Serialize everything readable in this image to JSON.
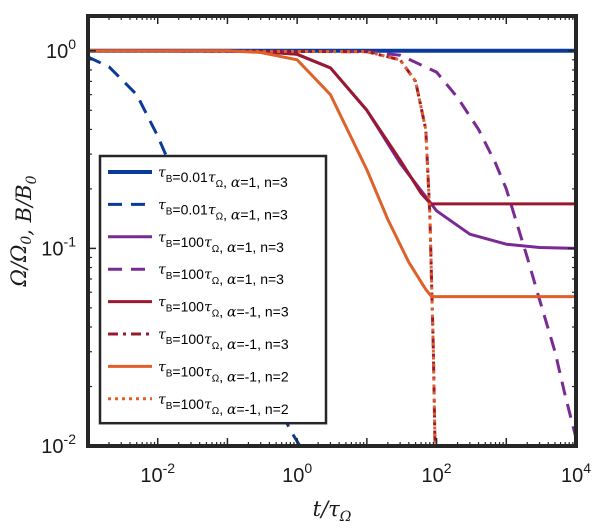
{
  "chart_data": {
    "type": "line",
    "title": "",
    "xlabel": "t/τ_Ω",
    "ylabel": "Ω/Ω_0, B/B_0",
    "x_scale": "log",
    "y_scale": "log",
    "xlim": [
      0.001,
      10000
    ],
    "ylim": [
      0.01,
      1.5
    ],
    "x_ticks": [
      {
        "value": 0.01,
        "base": "10",
        "exp": "-2"
      },
      {
        "value": 1,
        "base": "10",
        "exp": "0"
      },
      {
        "value": 100,
        "base": "10",
        "exp": "2"
      },
      {
        "value": 10000,
        "base": "10",
        "exp": "4"
      }
    ],
    "y_ticks": [
      {
        "value": 0.01,
        "base": "10",
        "exp": "-2"
      },
      {
        "value": 0.1,
        "base": "10",
        "exp": "-1"
      },
      {
        "value": 1,
        "base": "10",
        "exp": "0"
      }
    ],
    "grid": false,
    "legend_position": "left",
    "series": [
      {
        "name": "τ_B=0.01τ_Ω, α=1, n=3",
        "color": "#0a3a9a",
        "style": "solid",
        "width": 4,
        "x": [
          0.001,
          10000
        ],
        "y": [
          1.0,
          1.0
        ]
      },
      {
        "name": "τ_B=0.01τ_Ω, α=1, n=3",
        "color": "#0a3a9a",
        "style": "dashed",
        "width": 3,
        "x": [
          0.001,
          0.002,
          0.005,
          0.01,
          0.02,
          0.05,
          0.1,
          0.2,
          0.5,
          0.8,
          1.1
        ],
        "y": [
          0.93,
          0.83,
          0.6,
          0.37,
          0.21,
          0.09,
          0.05,
          0.03,
          0.017,
          0.012,
          0.01
        ]
      },
      {
        "name": "τ_B=100τ_Ω, α=1, n=3",
        "color": "#7a2a94",
        "style": "solid",
        "width": 3,
        "x": [
          0.001,
          0.1,
          0.3,
          1,
          3,
          10,
          30,
          100,
          300,
          1000,
          3000,
          10000
        ],
        "y": [
          1.0,
          1.0,
          0.99,
          0.96,
          0.82,
          0.5,
          0.27,
          0.155,
          0.118,
          0.105,
          0.101,
          0.1
        ]
      },
      {
        "name": "τ_B=100τ_Ω, α=1, n=3",
        "color": "#7a2a94",
        "style": "dashed",
        "width": 3,
        "x": [
          0.001,
          10,
          30,
          100,
          200,
          400,
          700,
          1000,
          2000,
          3000,
          5000,
          7000,
          10000
        ],
        "y": [
          1.0,
          0.99,
          0.95,
          0.78,
          0.58,
          0.4,
          0.27,
          0.2,
          0.09,
          0.055,
          0.03,
          0.018,
          0.011
        ]
      },
      {
        "name": "τ_B=100τ_Ω, α=-1, n=3",
        "color": "#9a1830",
        "style": "solid",
        "width": 3,
        "x": [
          0.001,
          0.1,
          0.3,
          1,
          3,
          10,
          30,
          60,
          80,
          85,
          10000
        ],
        "y": [
          1.0,
          1.0,
          0.99,
          0.96,
          0.82,
          0.5,
          0.28,
          0.19,
          0.17,
          0.168,
          0.168
        ]
      },
      {
        "name": "τ_B=100τ_Ω, α=-1, n=3",
        "color": "#9a1830",
        "style": "dashdot",
        "width": 3,
        "x": [
          0.001,
          10,
          30,
          50,
          70,
          80,
          90,
          95
        ],
        "y": [
          1.0,
          0.99,
          0.9,
          0.7,
          0.4,
          0.15,
          0.03,
          0.01
        ]
      },
      {
        "name": "τ_B=100τ_Ω, α=-1, n=2",
        "color": "#e0602a",
        "style": "solid",
        "width": 3,
        "x": [
          0.001,
          0.1,
          0.3,
          1,
          3,
          10,
          20,
          40,
          70,
          85,
          10000
        ],
        "y": [
          1.0,
          1.0,
          0.98,
          0.9,
          0.6,
          0.25,
          0.14,
          0.085,
          0.062,
          0.057,
          0.057
        ]
      },
      {
        "name": "τ_B=100τ_Ω, α=-1, n=2",
        "color": "#e0602a",
        "style": "dotted",
        "width": 3,
        "x": [
          0.001,
          10,
          30,
          50,
          70,
          80,
          90,
          95
        ],
        "y": [
          1.0,
          0.99,
          0.9,
          0.7,
          0.4,
          0.15,
          0.03,
          0.01
        ]
      }
    ],
    "legend": [
      {
        "color": "#0a3a9a",
        "style": "solid",
        "width": 4,
        "tb": "0.01",
        "alpha": "1",
        "n": "3"
      },
      {
        "color": "#0a3a9a",
        "style": "dashed",
        "width": 3,
        "tb": "0.01",
        "alpha": "1",
        "n": "3"
      },
      {
        "color": "#7a2a94",
        "style": "solid",
        "width": 3,
        "tb": "100",
        "alpha": "1",
        "n": "3"
      },
      {
        "color": "#7a2a94",
        "style": "dashed",
        "width": 3,
        "tb": "100",
        "alpha": "1",
        "n": "3"
      },
      {
        "color": "#9a1830",
        "style": "solid",
        "width": 3,
        "tb": "100",
        "alpha": "-1",
        "n": "3"
      },
      {
        "color": "#9a1830",
        "style": "dashdot",
        "width": 3,
        "tb": "100",
        "alpha": "-1",
        "n": "3"
      },
      {
        "color": "#e0602a",
        "style": "solid",
        "width": 3,
        "tb": "100",
        "alpha": "-1",
        "n": "2"
      },
      {
        "color": "#e0602a",
        "style": "dotted",
        "width": 3,
        "tb": "100",
        "alpha": "-1",
        "n": "2"
      }
    ]
  }
}
